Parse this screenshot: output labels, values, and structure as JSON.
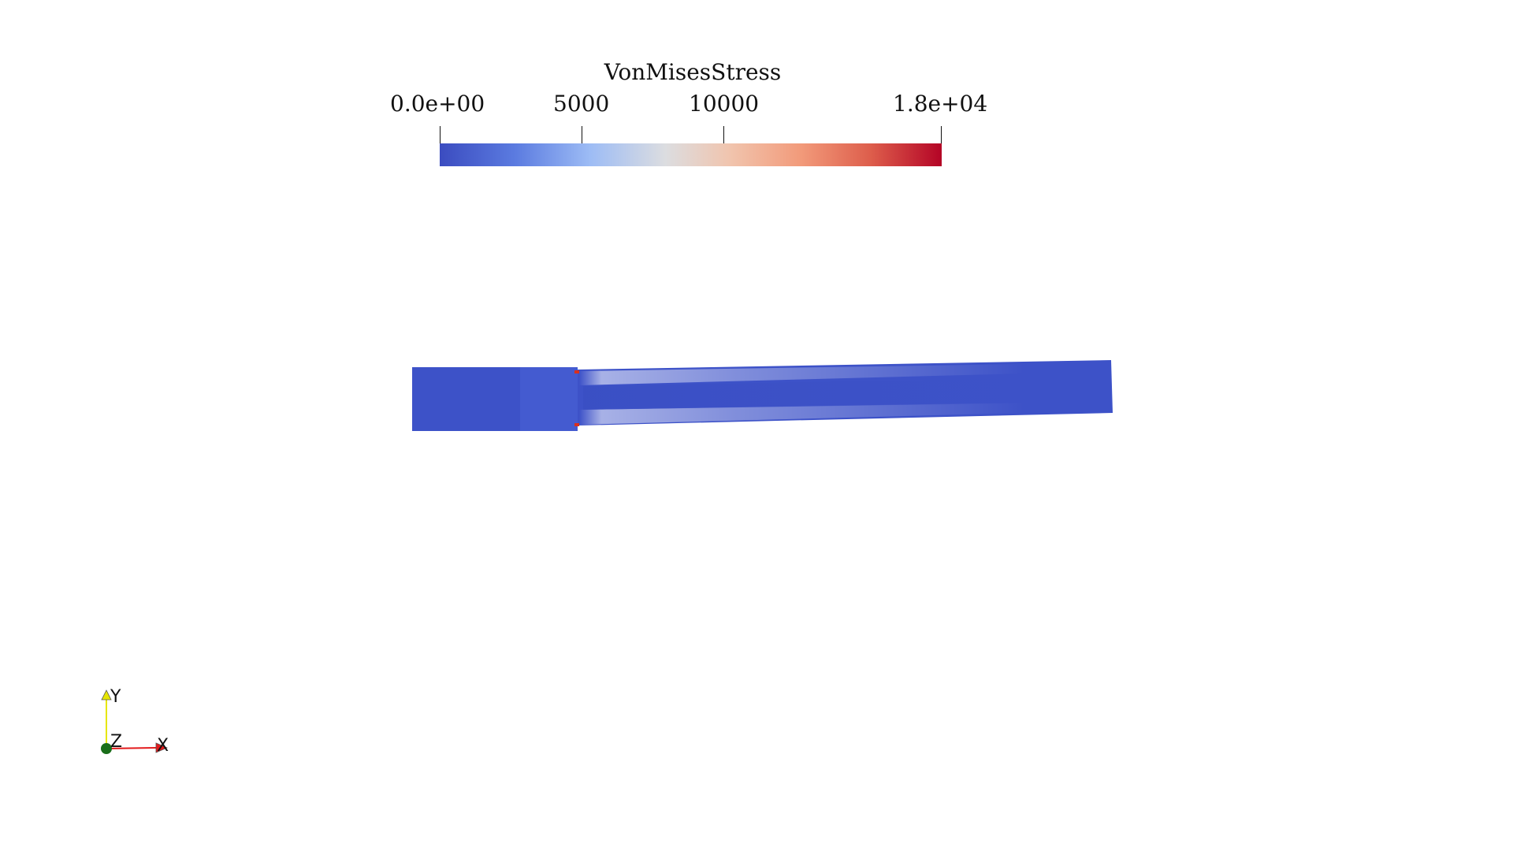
{
  "legend": {
    "title": "VonMisesStress",
    "ticks": [
      "0.0e+00",
      "5000",
      "10000",
      "1.8e+04"
    ],
    "range": [
      0,
      18000
    ],
    "colormap": {
      "low": "#3b4cc0",
      "mid": "#dddddd",
      "high": "#b40426"
    }
  },
  "orientation_axes": {
    "x_label": "X",
    "y_label": "Y",
    "z_label": "Z",
    "x_color": "#e31a1c",
    "y_color": "#e6e600",
    "z_color": "#1a6e1a"
  },
  "model": {
    "dominant_color": "#3d52c8",
    "peak_color": "#d7301f"
  }
}
